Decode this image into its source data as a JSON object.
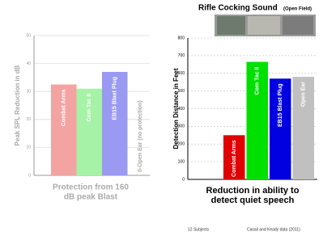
{
  "chart_data": [
    {
      "type": "bar",
      "y_label": "Peak SPL Reduction in dB",
      "x_label": [
        "Protection from 160",
        "dB peak Blast"
      ],
      "categories": [
        "Combat Arms",
        "Com Tac II",
        "EB15 Blast Plug"
      ],
      "values": [
        32.5,
        31,
        37
      ],
      "colors": [
        "#f4a3a3",
        "#a6f2a6",
        "#9a9af2"
      ],
      "annotation": "0-Open Ear (no protection)",
      "ylim": [
        0,
        50
      ],
      "yticks": [
        0,
        10,
        20,
        30,
        40,
        50
      ],
      "grid": true
    },
    {
      "type": "bar",
      "title": "Rifle Cocking Sound",
      "subtitle": "(Open Field)",
      "y_label": "Detection Distance in Feet",
      "x_label": [
        "Reduction in ability to",
        "detect quiet speech"
      ],
      "categories": [
        "Combat Arms",
        "Com Tac II",
        "EB15 Blast Plug",
        "Open Ear"
      ],
      "values": [
        250,
        665,
        570,
        580
      ],
      "colors": [
        "#e00000",
        "#00e000",
        "#0000e0",
        "#c0c0c0"
      ],
      "notes": [
        "12 Subjects",
        "Casali and Keady data (2011)"
      ],
      "ylim": [
        0,
        800
      ],
      "yticks": [
        0,
        100,
        200,
        300,
        400,
        500,
        600,
        700,
        800
      ],
      "grid": true
    }
  ]
}
